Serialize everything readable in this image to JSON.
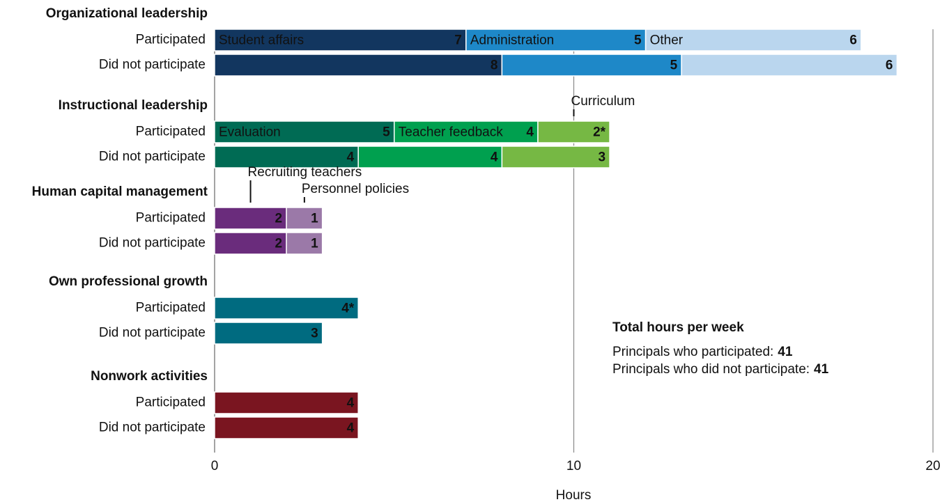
{
  "chart_data": {
    "type": "grouped-stacked-bar",
    "orientation": "horizontal",
    "xlabel": "Hours",
    "xlim": [
      0,
      20
    ],
    "xticks": [
      0,
      10,
      20
    ],
    "grid": true,
    "groups": [
      {
        "name": "Organizational leadership",
        "categories": [
          "Participated",
          "Did not participate"
        ],
        "series": [
          {
            "name": "Student affairs",
            "color": "#12365f",
            "values": [
              7,
              8
            ]
          },
          {
            "name": "Administration",
            "color": "#1e88c8",
            "values": [
              5,
              5
            ]
          },
          {
            "name": "Other",
            "color": "#bad6ee",
            "values": [
              6,
              6
            ]
          }
        ]
      },
      {
        "name": "Instructional leadership",
        "categories": [
          "Participated",
          "Did not participate"
        ],
        "series": [
          {
            "name": "Evaluation",
            "color": "#006b54",
            "values": [
              5,
              4
            ]
          },
          {
            "name": "Teacher feedback",
            "color": "#00a04f",
            "values": [
              4,
              4
            ]
          },
          {
            "name": "Curriculum",
            "color": "#76b844",
            "values": [
              2,
              3
            ],
            "value_labels": [
              "2*",
              "3"
            ]
          }
        ]
      },
      {
        "name": "Human capital management",
        "categories": [
          "Participated",
          "Did not participate"
        ],
        "series": [
          {
            "name": "Recruiting teachers",
            "color": "#6a2c7c",
            "values": [
              2,
              2
            ]
          },
          {
            "name": "Personnel policies",
            "color": "#9b79a8",
            "values": [
              1,
              1
            ]
          }
        ]
      },
      {
        "name": "Own professional growth",
        "categories": [
          "Participated",
          "Did not participate"
        ],
        "series": [
          {
            "color": "#006b80",
            "values": [
              4,
              3
            ],
            "value_labels": [
              "4*",
              "3"
            ]
          }
        ]
      },
      {
        "name": "Nonwork activities",
        "categories": [
          "Participated",
          "Did not participate"
        ],
        "series": [
          {
            "color": "#7a1520",
            "values": [
              4,
              4
            ]
          }
        ]
      }
    ],
    "annotation": {
      "title": "Total hours per week",
      "lines": [
        {
          "label": "Principals who participated:",
          "value": 41
        },
        {
          "label": "Principals who did not participate:",
          "value": 41
        }
      ]
    }
  }
}
